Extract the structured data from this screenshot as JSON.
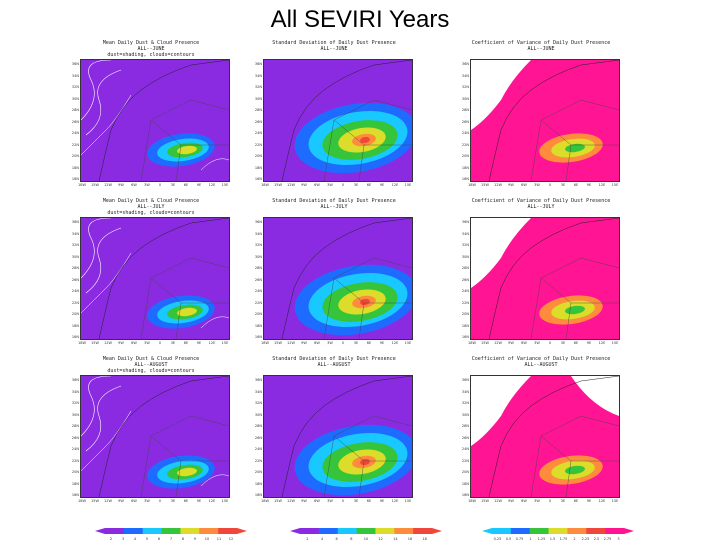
{
  "title": "All SEVIRI Years",
  "colors": {
    "purple": "#8a2be2",
    "magenta": "#ff1493",
    "blue": "#1e6bff",
    "cyan": "#18c8ff",
    "green": "#35c43a",
    "yellow": "#dcdc2a",
    "orange": "#ff8c3c",
    "red": "#f0463c"
  },
  "lat_ticks": [
    "36N",
    "34N",
    "32N",
    "30N",
    "28N",
    "26N",
    "24N",
    "22N",
    "20N",
    "18N",
    "16N"
  ],
  "lon_ticks": [
    "18W",
    "15W",
    "12W",
    "9W",
    "6W",
    "3W",
    "0",
    "3E",
    "6E",
    "9E",
    "12E",
    "15E"
  ],
  "panels": [
    {
      "id": "mean-june",
      "title": "Mean Daily Dust & Cloud Presence",
      "subtitle": "ALL--JUNE",
      "note": "dust=shading, clouds=contours",
      "kind": "mean"
    },
    {
      "id": "std-june",
      "title": "Standard Deviation of Daily Dust Presence",
      "subtitle": "ALL--JUNE",
      "note": "",
      "kind": "std"
    },
    {
      "id": "cov-june",
      "title": "Coefficient of Variance of Daily Dust Presence",
      "subtitle": "ALL--JUNE",
      "note": "",
      "kind": "cov"
    },
    {
      "id": "mean-july",
      "title": "Mean Daily Dust & Cloud Presence",
      "subtitle": "ALL--JULY",
      "note": "dust=shading, clouds=contours",
      "kind": "mean"
    },
    {
      "id": "std-july",
      "title": "Standard Deviation of Daily Dust Presence",
      "subtitle": "ALL--JULY",
      "note": "",
      "kind": "std"
    },
    {
      "id": "cov-july",
      "title": "Coefficient of Variance of Daily Dust Presence",
      "subtitle": "ALL--JULY",
      "note": "",
      "kind": "cov"
    },
    {
      "id": "mean-august",
      "title": "Mean Daily Dust & Cloud Presence",
      "subtitle": "ALL--AUGUST",
      "note": "dust=shading, clouds=contours",
      "kind": "mean"
    },
    {
      "id": "std-august",
      "title": "Standard Deviation of Daily Dust Presence",
      "subtitle": "ALL--AUGUST",
      "note": "",
      "kind": "std"
    },
    {
      "id": "cov-august",
      "title": "Coefficient of Variance of Daily Dust Presence",
      "subtitle": "ALL--AUGUST",
      "note": "",
      "kind": "cov"
    }
  ],
  "colorbars": [
    {
      "id": "mean",
      "ticks": [
        "2",
        "3",
        "4",
        "5",
        "6",
        "7",
        "8",
        "9",
        "10",
        "11",
        "12"
      ]
    },
    {
      "id": "std",
      "ticks": [
        "2",
        "4",
        "6",
        "8",
        "10",
        "12",
        "14",
        "16",
        "18"
      ]
    },
    {
      "id": "cov",
      "ticks": [
        "0.25",
        "0.5",
        "0.75",
        "1",
        "1.25",
        "1.5",
        "1.75",
        "2",
        "2.25",
        "2.5",
        "2.75",
        "3"
      ]
    }
  ]
}
